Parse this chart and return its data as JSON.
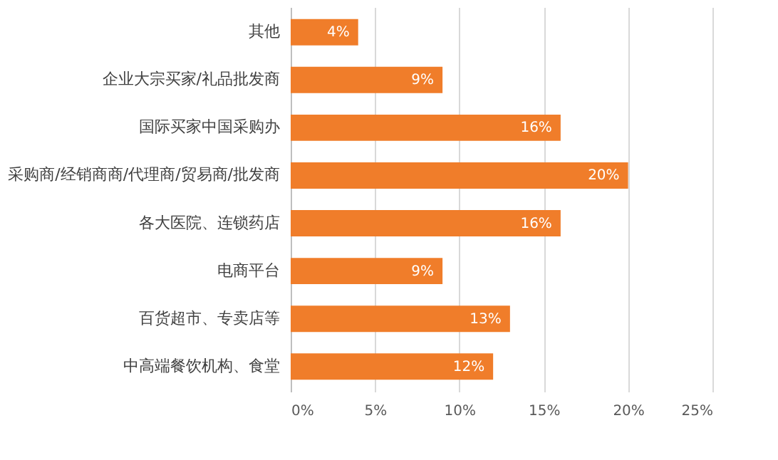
{
  "chart_data": {
    "type": "bar",
    "orientation": "horizontal",
    "categories": [
      "其他",
      "企业大宗买家/礼品批发商",
      "国际买家中国采购办",
      "采购商/经销商商/代理商/贸易商/批发商",
      "各大医院、连锁药店",
      "电商平台",
      "百货超市、专卖店等",
      "中高端餐饮机构、食堂"
    ],
    "values": [
      4,
      9,
      16,
      20,
      16,
      9,
      13,
      12
    ],
    "value_labels": [
      "4%",
      "9%",
      "16%",
      "20%",
      "16%",
      "9%",
      "13%",
      "12%"
    ],
    "color": "#f07d2a",
    "xlim": [
      0,
      25
    ],
    "xticks": [
      {
        "value": 0,
        "label": "0%"
      },
      {
        "value": 5,
        "label": "5%"
      },
      {
        "value": 10,
        "label": "10%"
      },
      {
        "value": 15,
        "label": "15%"
      },
      {
        "value": 20,
        "label": "20%"
      },
      {
        "value": 25,
        "label": "25%"
      }
    ],
    "grid": "x"
  }
}
